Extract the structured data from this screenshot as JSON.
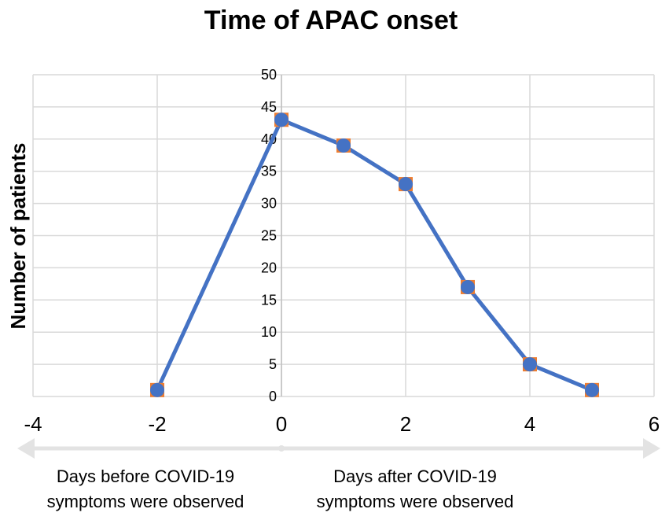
{
  "chart_data": {
    "type": "scatter",
    "title": "Time of APAC onset",
    "xlabel": "",
    "ylabel": "Number of patients",
    "xlim": [
      -4,
      6
    ],
    "ylim": [
      0,
      50
    ],
    "x_ticks": [
      -4,
      -2,
      0,
      2,
      4,
      6
    ],
    "y_ticks": [
      0,
      5,
      10,
      15,
      20,
      25,
      30,
      35,
      40,
      45,
      50
    ],
    "grid": true,
    "series": [
      {
        "name": "APAC onset",
        "x": [
          -2,
          0,
          1,
          2,
          3,
          4,
          5
        ],
        "y": [
          1,
          43,
          39,
          33,
          17,
          5,
          1
        ],
        "color": "#4472C4",
        "marker_color": "#ED7D31"
      }
    ],
    "annotations": {
      "left_arrow_label": [
        "Days before COVID-19",
        "symptoms were observed"
      ],
      "right_arrow_label": [
        "Days after COVID-19",
        "symptoms were observed"
      ]
    }
  }
}
